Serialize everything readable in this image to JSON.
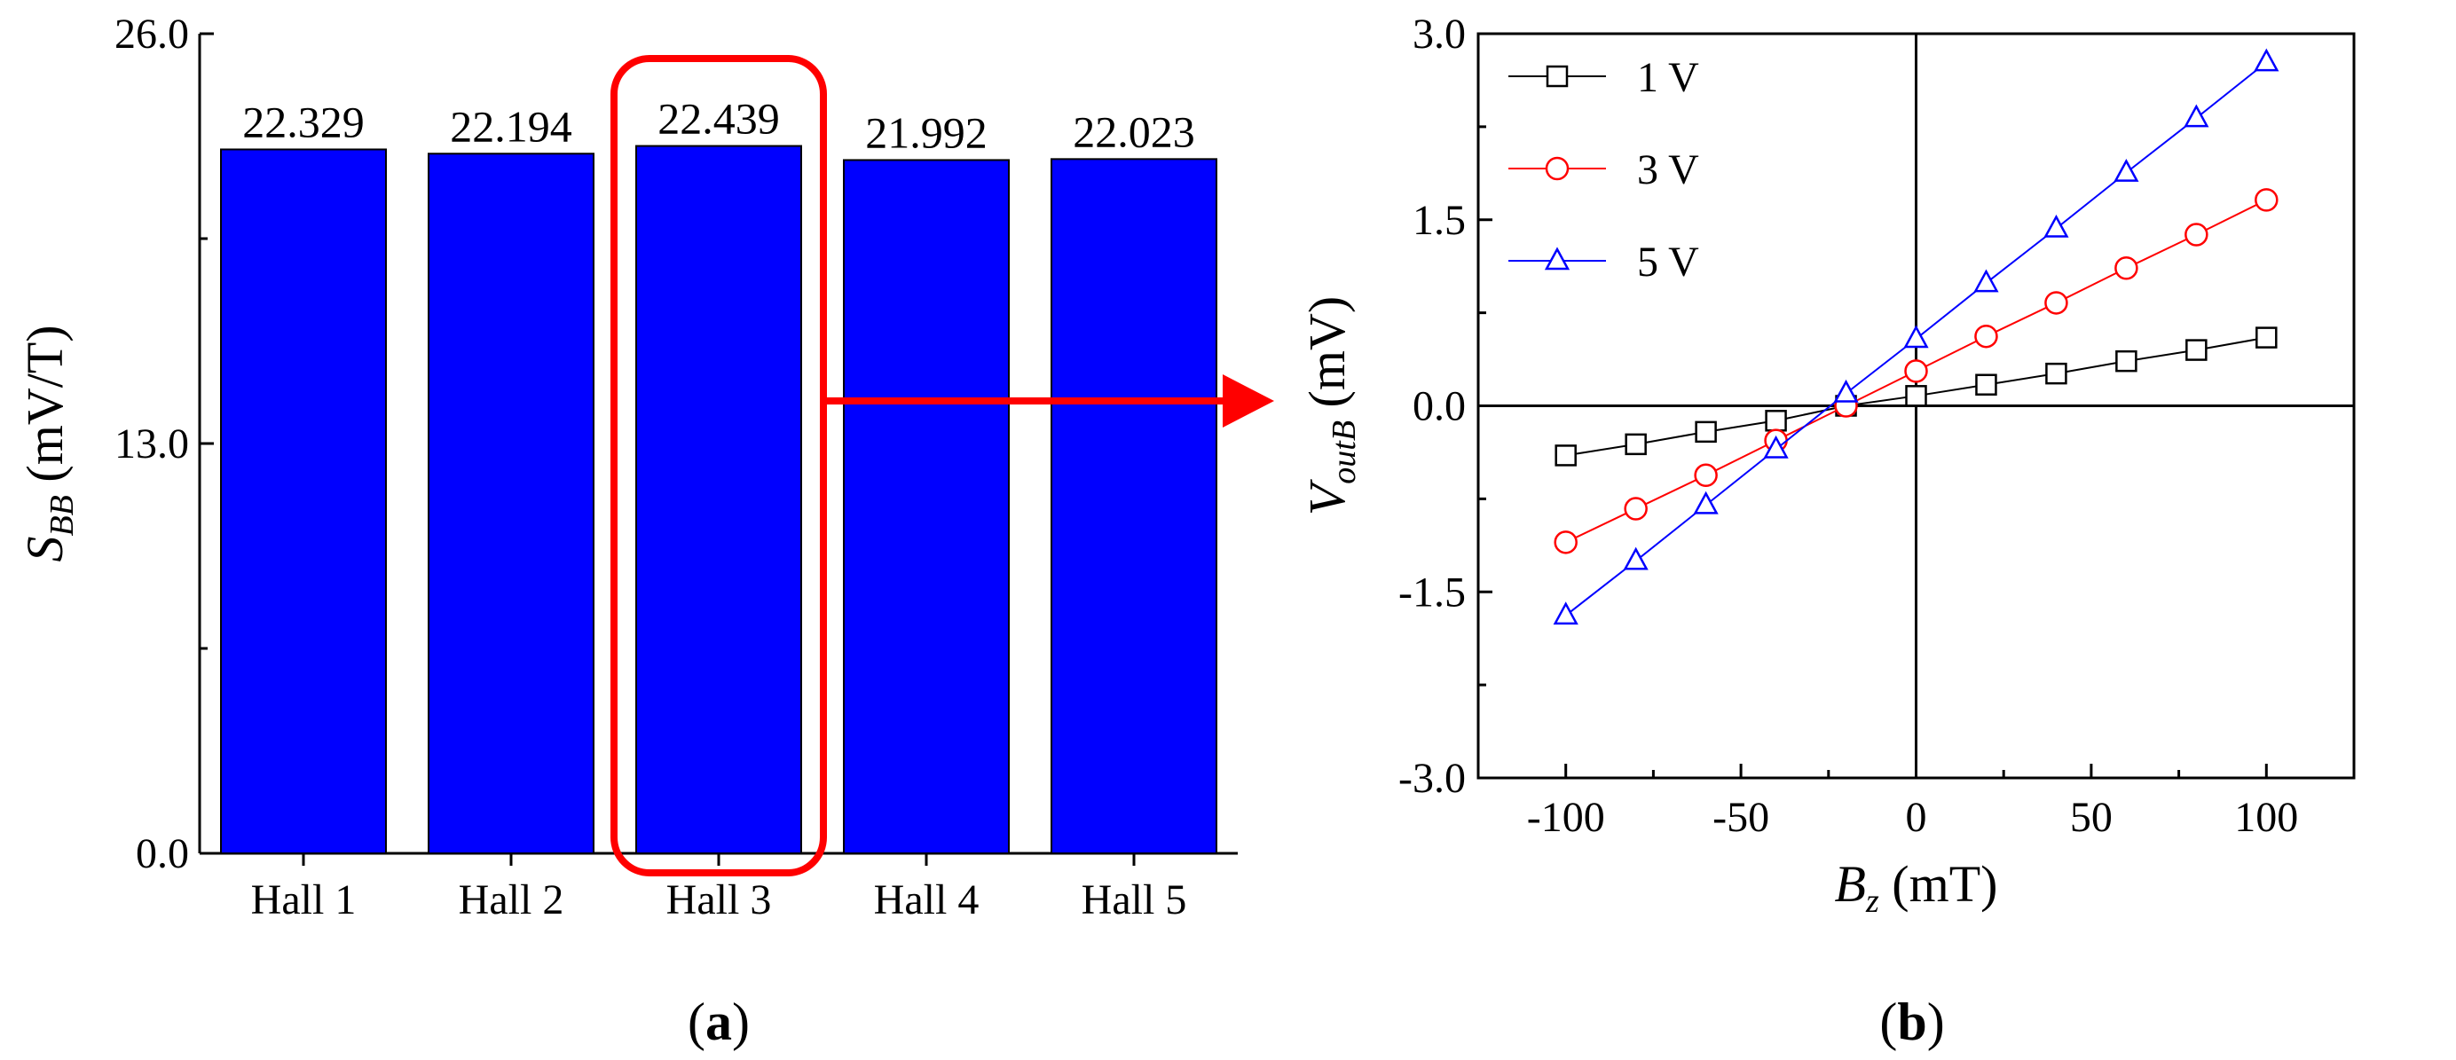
{
  "chart_data": [
    {
      "panel": "a",
      "type": "bar",
      "categories": [
        "Hall 1",
        "Hall 2",
        "Hall 3",
        "Hall 4",
        "Hall 5"
      ],
      "values": [
        22.329,
        22.194,
        22.439,
        21.992,
        22.023
      ],
      "value_labels": [
        "22.329",
        "22.194",
        "22.439",
        "21.992",
        "22.023"
      ],
      "ylabel": {
        "main": "S",
        "sub": "BB",
        "unit": " (mV/T)"
      },
      "ylim": [
        0,
        26
      ],
      "yticks": [
        0,
        13,
        26
      ],
      "ytick_labels": [
        "0.0",
        "13.0",
        "26.0"
      ],
      "highlighted_category": "Hall 3",
      "bar_color": "#0000ff",
      "highlight_color": "#ff0000",
      "panel_label": {
        "open": "(",
        "letter": "a",
        "close": ")"
      }
    },
    {
      "panel": "b",
      "type": "line",
      "x": [
        -100,
        -80,
        -60,
        -40,
        -20,
        0,
        20,
        40,
        60,
        80,
        100
      ],
      "series": [
        {
          "name": "1 V",
          "marker": "square",
          "color": "#000000",
          "values": [
            -0.4,
            -0.31,
            -0.21,
            -0.12,
            0.0,
            0.08,
            0.17,
            0.26,
            0.36,
            0.45,
            0.55
          ]
        },
        {
          "name": "3 V",
          "marker": "circle",
          "color": "#ff0000",
          "values": [
            -1.1,
            -0.83,
            -0.56,
            -0.28,
            0.0,
            0.28,
            0.56,
            0.83,
            1.11,
            1.38,
            1.66
          ]
        },
        {
          "name": "5 V",
          "marker": "triangle",
          "color": "#0000ff",
          "values": [
            -1.69,
            -1.25,
            -0.8,
            -0.35,
            0.1,
            0.54,
            0.99,
            1.43,
            1.88,
            2.32,
            2.77
          ]
        }
      ],
      "xlabel": {
        "main": "B",
        "sub": "z",
        "unit": " (mT)"
      },
      "ylabel": {
        "main": "V",
        "sub": "outB",
        "unit": " (mV)"
      },
      "xlim": [
        -125,
        125
      ],
      "ylim": [
        -3,
        3
      ],
      "xticks": [
        -100,
        -50,
        0,
        50,
        100
      ],
      "xtick_labels": [
        "-100",
        "-50",
        "0",
        "50",
        "100"
      ],
      "yticks": [
        -3,
        -1.5,
        0,
        1.5,
        3
      ],
      "ytick_labels": [
        "-3.0",
        "-1.5",
        "0.0",
        "1.5",
        "3.0"
      ],
      "legend_position": "top-left",
      "panel_label": {
        "open": "(",
        "letter": "b",
        "close": ")"
      }
    }
  ]
}
